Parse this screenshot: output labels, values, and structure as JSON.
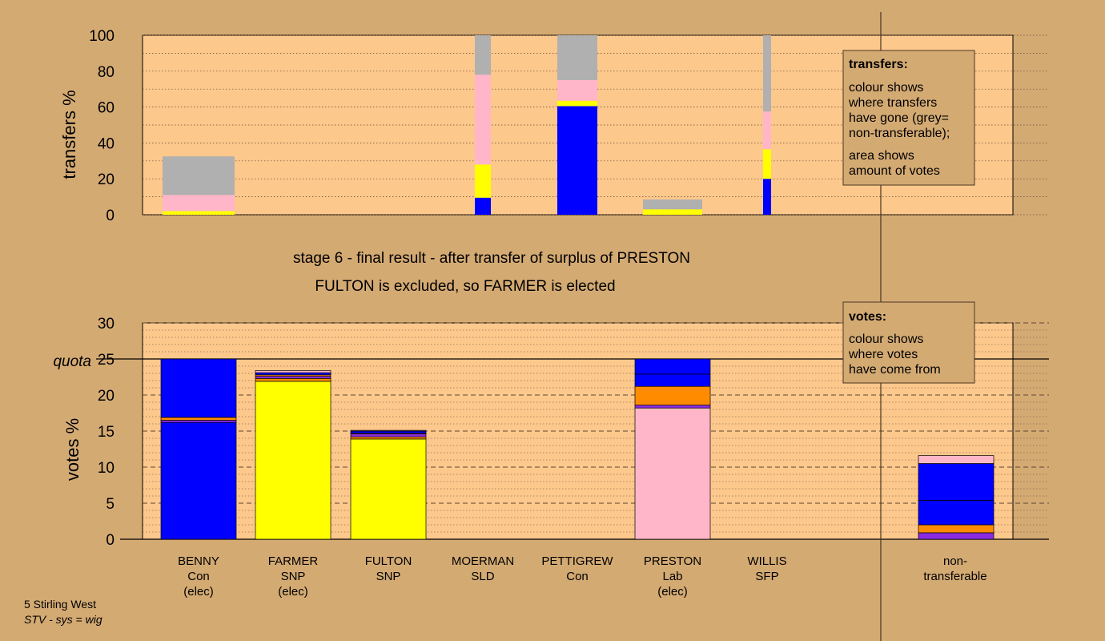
{
  "colors": {
    "background": "#d4aa73",
    "plot_bg": "#fdc88c",
    "Con": "#0000ff",
    "SNP": "#ffff00",
    "Lab": "#ffb6c8",
    "SLD": "#ff8c00",
    "SFP": "#8a2be2",
    "nontransferable": "#b0b0b0"
  },
  "transfers_panel": {
    "ylabel": "transfers %",
    "yticks": [
      "0",
      "20",
      "40",
      "60",
      "80",
      "100"
    ],
    "legend": {
      "head": "transfers:",
      "line1": "colour shows",
      "line2": "where transfers",
      "line3": "have gone (grey=",
      "line4": "non-transferable);",
      "line5": "area shows",
      "line6": "amount of votes"
    }
  },
  "title": {
    "line1": "stage 6 - final result - after transfer of surplus of PRESTON",
    "line2": "FULTON is excluded, so FARMER is elected"
  },
  "votes_panel": {
    "ylabel": "votes %",
    "quota_label": "quota",
    "yticks": [
      "0",
      "5",
      "10",
      "15",
      "20",
      "25",
      "30"
    ],
    "legend": {
      "head": "votes:",
      "line1": "colour shows",
      "line2": "where votes",
      "line3": "have come from"
    }
  },
  "candidates": [
    {
      "name": "BENNY",
      "party": "Con",
      "status": "(elec)"
    },
    {
      "name": "FARMER",
      "party": "SNP",
      "status": "(elec)"
    },
    {
      "name": "FULTON",
      "party": "SNP",
      "status": ""
    },
    {
      "name": "MOERMAN",
      "party": "SLD",
      "status": ""
    },
    {
      "name": "PETTIGREW",
      "party": "Con",
      "status": ""
    },
    {
      "name": "PRESTON",
      "party": "Lab",
      "status": "(elec)"
    },
    {
      "name": "WILLIS",
      "party": "SFP",
      "status": ""
    },
    {
      "name": "non-",
      "party": "transferable",
      "status": ""
    }
  ],
  "footer": {
    "line1": "5 Stirling West",
    "line2": "STV - sys = wig"
  },
  "chart_data": [
    {
      "type": "bar",
      "panel": "transfers",
      "ylabel": "transfers %",
      "ylim": [
        0,
        100
      ],
      "bars": [
        {
          "label": "BENNY",
          "segments": [
            {
              "party": "SNP",
              "value": 2
            },
            {
              "party": "Lab",
              "value": 9
            },
            {
              "party": "nontransferable",
              "value": 21.5
            }
          ]
        },
        {
          "label": "MOERMAN",
          "segments": [
            {
              "party": "Con",
              "value": 9.5
            },
            {
              "party": "SNP",
              "value": 18.5
            },
            {
              "party": "Lab",
              "value": 50
            },
            {
              "party": "nontransferable",
              "value": 22
            }
          ]
        },
        {
          "label": "PETTIGREW",
          "segments": [
            {
              "party": "Con",
              "value": 60.5
            },
            {
              "party": "SNP",
              "value": 3
            },
            {
              "party": "Lab",
              "value": 11.5
            },
            {
              "party": "nontransferable",
              "value": 25
            }
          ]
        },
        {
          "label": "PRESTON",
          "segments": [
            {
              "party": "SNP",
              "value": 3
            },
            {
              "party": "nontransferable",
              "value": 5.5
            }
          ]
        },
        {
          "label": "WILLIS",
          "segments": [
            {
              "party": "Con",
              "value": 20
            },
            {
              "party": "SNP",
              "value": 16.5
            },
            {
              "party": "Lab",
              "value": 21
            },
            {
              "party": "nontransferable",
              "value": 42.5
            }
          ]
        }
      ]
    },
    {
      "type": "bar",
      "panel": "votes",
      "ylabel": "votes %",
      "ylim": [
        0,
        30
      ],
      "quota": 25,
      "bars": [
        {
          "label": "BENNY",
          "segments": [
            {
              "party": "Con",
              "value": 16.2
            },
            {
              "party": "SFP",
              "value": 0.3
            },
            {
              "party": "SLD",
              "value": 0.4
            },
            {
              "party": "Con",
              "value": 8.1
            }
          ]
        },
        {
          "label": "FARMER",
          "segments": [
            {
              "party": "SNP",
              "value": 21.9
            },
            {
              "party": "SLD",
              "value": 0.4
            },
            {
              "party": "SFP",
              "value": 0.3
            },
            {
              "party": "SLD",
              "value": 0.2
            },
            {
              "party": "Con",
              "value": 0.3
            },
            {
              "party": "Lab",
              "value": 0.3
            }
          ]
        },
        {
          "label": "FULTON",
          "segments": [
            {
              "party": "SNP",
              "value": 13.9
            },
            {
              "party": "SLD",
              "value": 0.3
            },
            {
              "party": "SFP",
              "value": 0.4
            },
            {
              "party": "SLD",
              "value": 0.1
            },
            {
              "party": "Con",
              "value": 0.3
            },
            {
              "party": "Lab",
              "value": 0.1
            }
          ]
        },
        {
          "label": "PRESTON",
          "segments": [
            {
              "party": "Lab",
              "value": 18.2
            },
            {
              "party": "SFP",
              "value": 0.4
            },
            {
              "party": "SLD",
              "value": 2.6
            },
            {
              "party": "Con",
              "value": 1.7
            },
            {
              "party": "Con",
              "value": 2.1
            }
          ]
        },
        {
          "label": "non-transferable",
          "segments": [
            {
              "party": "SFP",
              "value": 0.9
            },
            {
              "party": "SLD",
              "value": 1.1
            },
            {
              "party": "Con",
              "value": 3.4
            },
            {
              "party": "Con",
              "value": 5.1
            },
            {
              "party": "Lab",
              "value": 1.1
            }
          ]
        }
      ]
    }
  ]
}
